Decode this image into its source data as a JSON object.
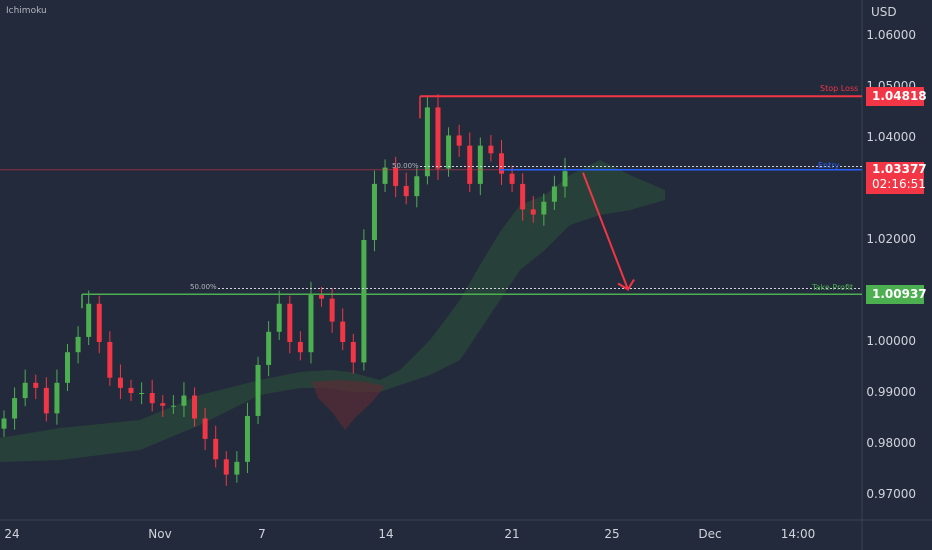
{
  "indicator_name": "Ichimoku",
  "currency": "USD",
  "colors": {
    "background": "#232a3b",
    "bull": "#4caf50",
    "bear": "#f23645",
    "stop_loss": "#f23645",
    "take_profit": "#4caf50",
    "entry": "#2962ff",
    "cloud_bull": "#2f5a3a",
    "cloud_bear": "#5a2c36"
  },
  "price_axis": {
    "labels": [
      "1.06000",
      "1.05000",
      "1.04000",
      "1.03000",
      "1.02000",
      "1.01000",
      "1.00000",
      "0.99000",
      "0.98000",
      "0.97000"
    ]
  },
  "date_axis": {
    "labels": [
      "24",
      "Nov",
      "7",
      "14",
      "21",
      "25",
      "Dec",
      "14:00"
    ]
  },
  "levels": {
    "stop_loss": {
      "label": "Stop Loss",
      "price": "1.04818"
    },
    "entry": {
      "label": "Entry",
      "price": "1.03377",
      "countdown": "02:16:51"
    },
    "take_profit": {
      "label": "Take Profit",
      "price": "1.00937"
    }
  },
  "fib_labels": {
    "upper": "50.00%",
    "lower": "50.00%"
  },
  "chart_data": {
    "type": "candlestick",
    "symbol_currency": "USD",
    "indicator": "Ichimoku",
    "ylim": [
      0.965,
      1.066
    ],
    "y_ticks": [
      0.97,
      0.98,
      0.99,
      1.0,
      1.01,
      1.02,
      1.03,
      1.04,
      1.05,
      1.06
    ],
    "x_ticks": [
      "24",
      "Nov",
      "7",
      "14",
      "21",
      "25",
      "Dec",
      "14:00"
    ],
    "annotations": {
      "stop_loss": 1.04818,
      "take_profit": 1.00937,
      "current_price": 1.03377,
      "fib_50_upper": 1.0344,
      "fib_50_lower": 1.0105,
      "projection_arrow": {
        "from": 1.0332,
        "to": 1.0103
      }
    },
    "close_path": [
      0.985,
      0.989,
      0.992,
      0.991,
      0.986,
      0.992,
      0.998,
      1.001,
      1.0075,
      1.0,
      0.993,
      0.991,
      0.99,
      0.99,
      0.988,
      0.9875,
      0.9875,
      0.9895,
      0.985,
      0.981,
      0.977,
      0.974,
      0.9765,
      0.9855,
      0.9955,
      1.002,
      1.0075,
      1.0,
      0.998,
      1.0092,
      1.0085,
      1.004,
      1.0,
      0.996,
      1.02,
      1.031,
      1.0342,
      1.0306,
      1.0286,
      1.0325,
      1.046,
      1.034,
      1.0405,
      1.0385,
      1.031,
      1.0385,
      1.037,
      1.033,
      1.031,
      1.026,
      1.025,
      1.0275,
      1.0305,
      1.0335
    ]
  }
}
